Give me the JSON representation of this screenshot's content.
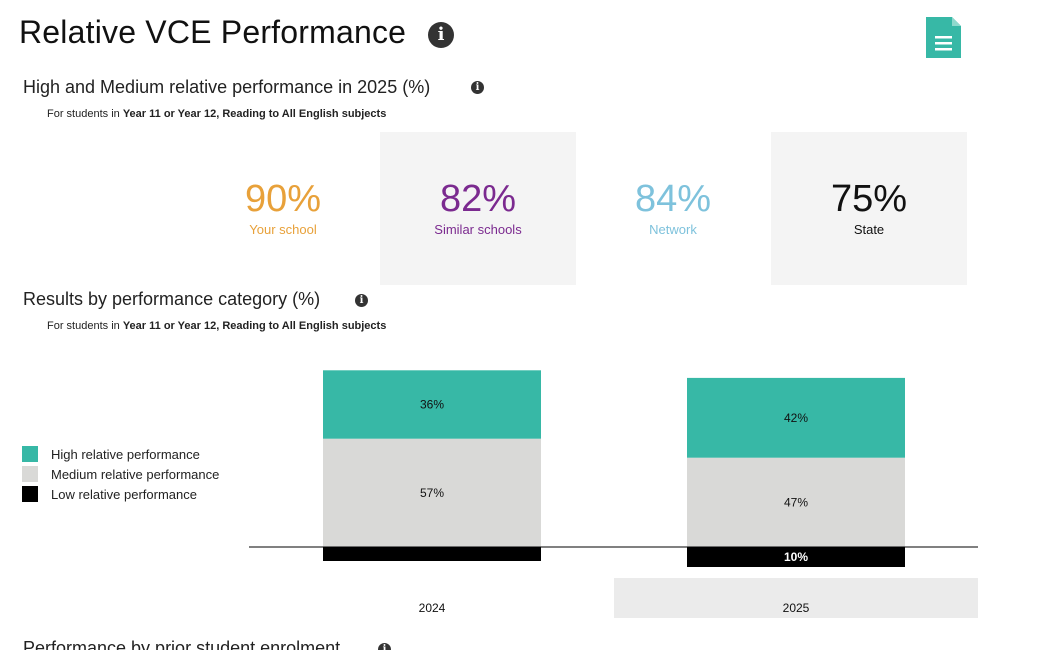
{
  "header": {
    "title": "Relative VCE Performance",
    "info_icon": "info-icon",
    "report_icon": "document-icon"
  },
  "summary": {
    "title": "High and Medium relative performance in 2025 (%)",
    "subtitle_prefix": "For students in ",
    "subtitle_bold": "Year 11 or Year 12, Reading to All English subjects",
    "stats": [
      {
        "value": "90%",
        "label": "Your school",
        "color": "#e8a13a"
      },
      {
        "value": "82%",
        "label": "Similar schools",
        "color": "#7b2a8f"
      },
      {
        "value": "84%",
        "label": "Network",
        "color": "#7ec2dc"
      },
      {
        "value": "75%",
        "label": "State",
        "color": "#111111"
      }
    ]
  },
  "results": {
    "title": "Results by performance category (%)",
    "subtitle_prefix": "For students in ",
    "subtitle_bold": "Year 11 or Year 12, Reading to All English subjects"
  },
  "legend": [
    {
      "label": "High relative performance",
      "color": "#37b8a6"
    },
    {
      "label": "Medium relative performance",
      "color": "#d9d9d7"
    },
    {
      "label": "Low relative performance",
      "color": "#000000"
    }
  ],
  "chart_data": {
    "type": "bar",
    "stacked": true,
    "baseline": "Low relative performance plotted below the zero line",
    "categories": [
      "2024",
      "2025"
    ],
    "highlighted_category": "2025",
    "series": [
      {
        "name": "High relative performance",
        "values": [
          36,
          42
        ],
        "color": "#37b8a6",
        "labels": [
          "36%",
          "42%"
        ]
      },
      {
        "name": "Medium relative performance",
        "values": [
          57,
          47
        ],
        "color": "#d9d9d7",
        "labels": [
          "57%",
          "47%"
        ]
      },
      {
        "name": "Low relative performance",
        "values": [
          7,
          10
        ],
        "color": "#000000",
        "labels": [
          "",
          "10%"
        ]
      }
    ]
  },
  "next_section": {
    "title": "Performance by prior student enrolment"
  }
}
